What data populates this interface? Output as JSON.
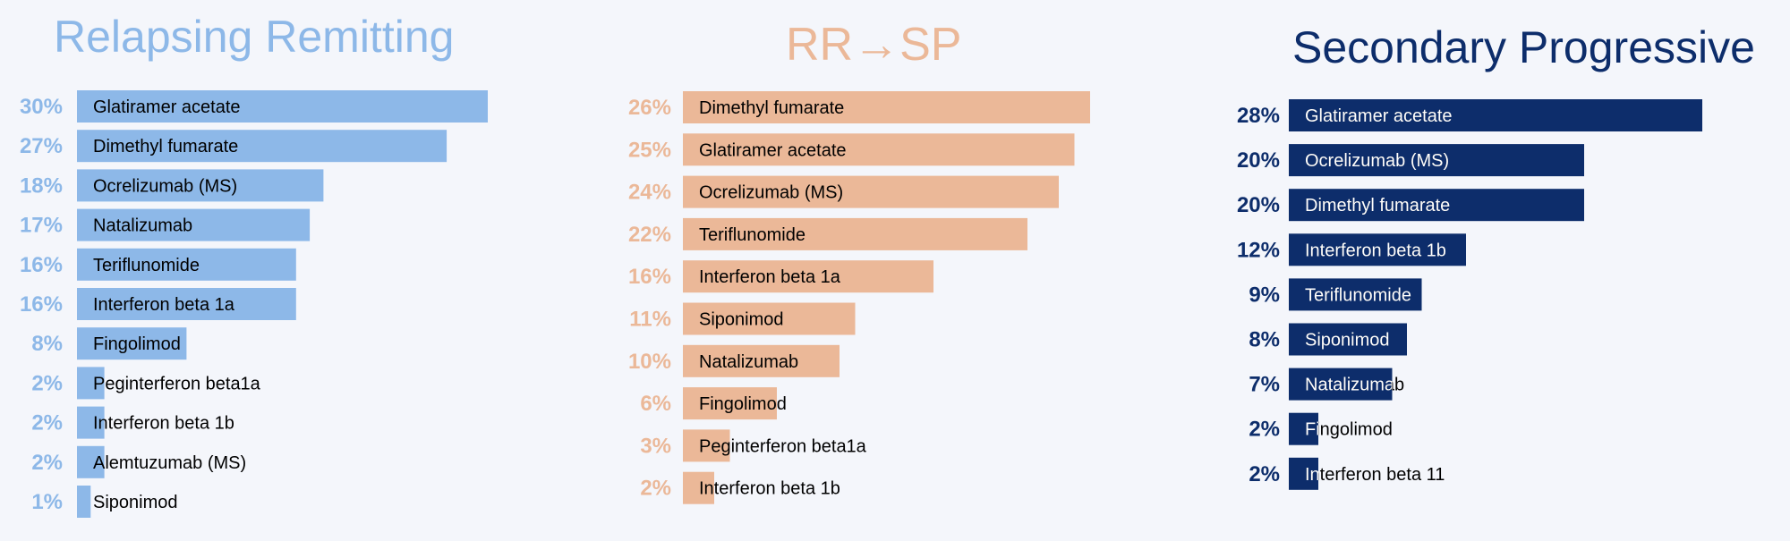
{
  "chart_data": [
    {
      "type": "bar",
      "orientation": "horizontal",
      "title": "Relapsing Remitting",
      "color": "#8db8e8",
      "value_color": "#8db8e8",
      "categories": [
        "Glatiramer acetate",
        "Dimethyl fumarate",
        "Ocrelizumab (MS)",
        "Natalizumab",
        "Teriflunomide",
        "Interferon beta 1a",
        "Fingolimod",
        "Peginterferon beta1a",
        "Interferon beta 1b",
        "Alemtuzumab (MS)",
        "Siponimod"
      ],
      "values": [
        30,
        27,
        18,
        17,
        16,
        16,
        8,
        2,
        2,
        2,
        1
      ],
      "value_labels": [
        "30%",
        "27%",
        "18%",
        "17%",
        "16%",
        "16%",
        "8%",
        "2%",
        "2%",
        "2%",
        "1%"
      ],
      "label_position": "inside-left"
    },
    {
      "type": "bar",
      "orientation": "horizontal",
      "title": "RR→SP",
      "color": "#ebb898",
      "value_color": "#ebb898",
      "categories": [
        "Dimethyl fumarate",
        "Glatiramer acetate",
        "Ocrelizumab (MS)",
        "Teriflunomide",
        "Interferon beta 1a",
        "Siponimod",
        "Natalizumab",
        "Fingolimod",
        "Peginterferon beta1a",
        "Interferon beta 1b"
      ],
      "values": [
        26,
        25,
        24,
        22,
        16,
        11,
        10,
        6,
        3,
        2
      ],
      "value_labels": [
        "26%",
        "25%",
        "24%",
        "22%",
        "16%",
        "11%",
        "10%",
        "6%",
        "3%",
        "2%"
      ],
      "label_position": "inside-left"
    },
    {
      "type": "bar",
      "orientation": "horizontal",
      "title": "Secondary Progressive",
      "color": "#0d2d6b",
      "value_color": "#0d2d6b",
      "categories": [
        "Glatiramer acetate",
        "Ocrelizumab (MS)",
        "Dimethyl fumarate",
        "Interferon beta 1b",
        "Teriflunomide",
        "Siponimod",
        "Natalizumab",
        "Fingolimod",
        "Interferon beta 11"
      ],
      "values": [
        28,
        20,
        20,
        12,
        9,
        8,
        7,
        2,
        2
      ],
      "value_labels": [
        "28%",
        "20%",
        "20%",
        "12%",
        "9%",
        "8%",
        "7%",
        "2%",
        "2%"
      ],
      "label_position": "inside-left"
    }
  ]
}
